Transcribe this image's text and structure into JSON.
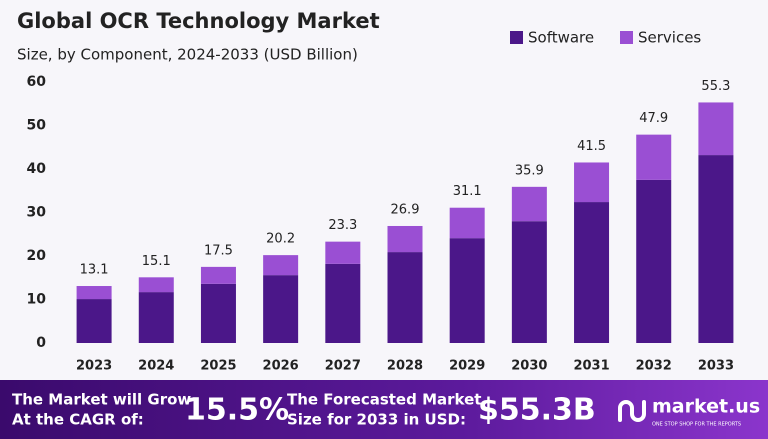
{
  "chart_data": {
    "type": "stacked_bar",
    "title": "Global OCR Technology Market",
    "subtitle": "Size, by Component, 2024-2033 (USD Billion)",
    "categories": [
      "2023",
      "2024",
      "2025",
      "2026",
      "2027",
      "2028",
      "2029",
      "2030",
      "2031",
      "2032",
      "2033"
    ],
    "series": [
      {
        "name": "Software",
        "color": "#4b1789",
        "values": [
          10.1,
          11.7,
          13.6,
          15.6,
          18.2,
          20.9,
          24.1,
          28.0,
          32.4,
          37.5,
          43.2
        ]
      },
      {
        "name": "Services",
        "color": "#9a4fd3",
        "values": [
          3.0,
          3.4,
          3.9,
          4.6,
          5.1,
          6.0,
          7.0,
          7.9,
          9.1,
          10.4,
          12.1
        ]
      }
    ],
    "totals": [
      13.1,
      15.1,
      17.5,
      20.2,
      23.3,
      26.9,
      31.1,
      35.9,
      41.5,
      47.9,
      55.3
    ],
    "ylim": [
      0,
      60
    ],
    "yticks": [
      0,
      10,
      20,
      30,
      40,
      50,
      60
    ],
    "grid": false,
    "legend": "top-right"
  },
  "banner": {
    "cagr_text": [
      "The Market will Grow",
      "At the CAGR of:"
    ],
    "cagr": "15.5%",
    "forecast_text": [
      "The Forecasted Market",
      "Size for 2033 in USD:"
    ],
    "forecast": "$55.3B",
    "brand": "market.us",
    "tagline": "ONE STOP SHOP FOR THE REPORTS"
  }
}
